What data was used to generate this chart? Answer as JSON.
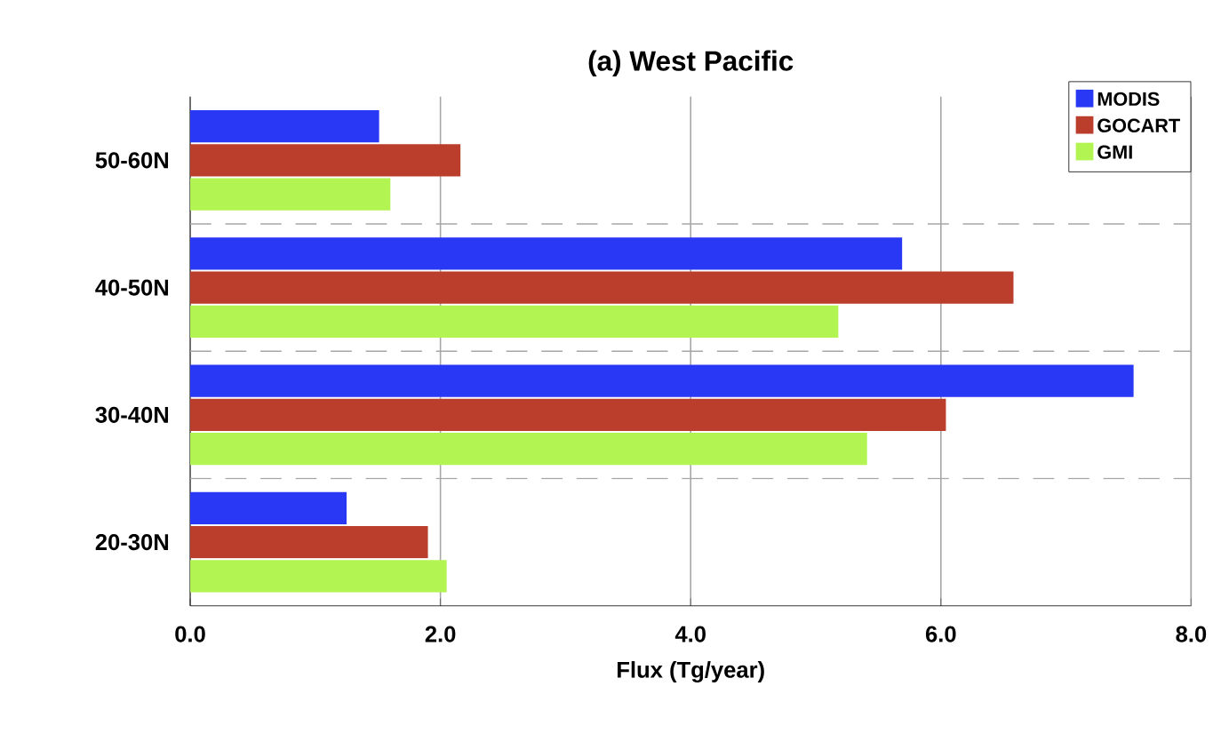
{
  "chart_data": {
    "type": "bar",
    "orientation": "horizontal",
    "title": "(a) West Pacific",
    "xlabel": "Flux (Tg/year)",
    "categories": [
      "50-60N",
      "40-50N",
      "30-40N",
      "20-30N"
    ],
    "series": [
      {
        "name": "MODIS",
        "color": "#2838f4",
        "values": [
          1.51,
          5.69,
          7.54,
          1.25
        ]
      },
      {
        "name": "GOCART",
        "color": "#bb3e2c",
        "values": [
          2.16,
          6.58,
          6.04,
          1.9
        ]
      },
      {
        "name": "GMI",
        "color": "#b2f552",
        "values": [
          1.6,
          5.18,
          5.41,
          2.05
        ]
      }
    ],
    "xlim": [
      0,
      8
    ],
    "xticks": [
      {
        "value": 0,
        "label": "0.0"
      },
      {
        "value": 2,
        "label": "2.0"
      },
      {
        "value": 4,
        "label": "4.0"
      },
      {
        "value": 6,
        "label": "6.0"
      },
      {
        "value": 8,
        "label": "8.0"
      }
    ],
    "grid": true,
    "legend": "top right"
  }
}
